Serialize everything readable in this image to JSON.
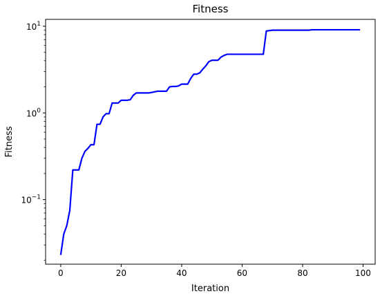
{
  "chart_data": {
    "type": "line",
    "title": "Fitness",
    "xlabel": "Iteration",
    "ylabel": "Fitness",
    "yscale": "log",
    "xlim": [
      -5,
      104
    ],
    "ylim": [
      0.018,
      12
    ],
    "grid": false,
    "xticks": [
      0,
      20,
      40,
      60,
      80,
      100
    ],
    "xtick_labels": [
      "0",
      "20",
      "40",
      "60",
      "80",
      "100"
    ],
    "yticks": [
      0.1,
      1,
      10
    ],
    "ytick_labels": [
      {
        "base": "10",
        "exp": "−1"
      },
      {
        "base": "10",
        "exp": "0"
      },
      {
        "base": "10",
        "exp": "1"
      }
    ],
    "series": [
      {
        "color": "#0000ff",
        "x": [
          0,
          1,
          2,
          3,
          4,
          5,
          6,
          7,
          8,
          9,
          10,
          11,
          12,
          13,
          14,
          15,
          16,
          17,
          18,
          19,
          20,
          21,
          22,
          23,
          24,
          25,
          26,
          27,
          28,
          29,
          30,
          31,
          32,
          33,
          34,
          35,
          36,
          37,
          38,
          39,
          40,
          41,
          42,
          43,
          44,
          45,
          46,
          47,
          48,
          49,
          50,
          51,
          52,
          53,
          54,
          55,
          56,
          57,
          58,
          59,
          60,
          61,
          62,
          63,
          64,
          65,
          66,
          67,
          68,
          69,
          70,
          71,
          72,
          73,
          74,
          75,
          76,
          77,
          78,
          79,
          80,
          81,
          82,
          83,
          84,
          85,
          86,
          87,
          88,
          89,
          90,
          91,
          92,
          93,
          94,
          95,
          96,
          97,
          98,
          99
        ],
        "y": [
          0.023,
          0.04,
          0.05,
          0.075,
          0.22,
          0.22,
          0.22,
          0.3,
          0.36,
          0.39,
          0.43,
          0.43,
          0.74,
          0.74,
          0.9,
          0.98,
          0.98,
          1.3,
          1.3,
          1.3,
          1.4,
          1.4,
          1.4,
          1.42,
          1.6,
          1.7,
          1.7,
          1.7,
          1.7,
          1.7,
          1.72,
          1.75,
          1.78,
          1.78,
          1.78,
          1.78,
          2.0,
          2.02,
          2.02,
          2.05,
          2.15,
          2.15,
          2.15,
          2.5,
          2.8,
          2.8,
          2.9,
          3.2,
          3.5,
          3.9,
          4.05,
          4.05,
          4.05,
          4.4,
          4.6,
          4.75,
          4.75,
          4.75,
          4.75,
          4.75,
          4.75,
          4.75,
          4.75,
          4.75,
          4.75,
          4.75,
          4.75,
          4.75,
          8.8,
          8.9,
          9.0,
          9.0,
          9.0,
          9.0,
          9.0,
          9.0,
          9.0,
          9.0,
          9.0,
          9.0,
          9.0,
          9.0,
          9.0,
          9.1,
          9.1,
          9.1,
          9.1,
          9.1,
          9.1,
          9.1,
          9.1,
          9.1,
          9.1,
          9.1,
          9.1,
          9.1,
          9.1,
          9.1,
          9.1,
          9.1
        ]
      }
    ]
  }
}
